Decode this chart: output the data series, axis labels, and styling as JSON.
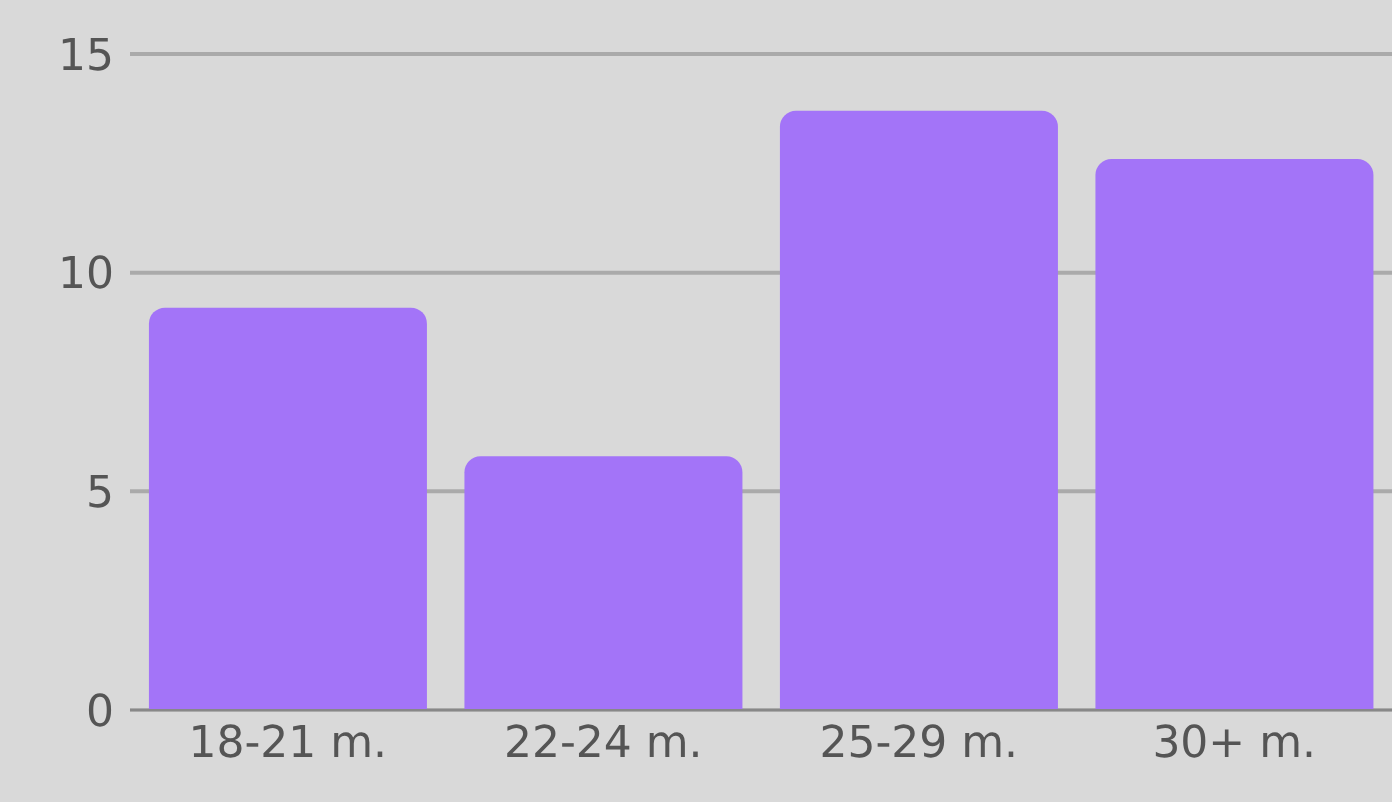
{
  "chart_data": {
    "type": "bar",
    "categories": [
      "18-21 m.",
      "22-24 m.",
      "25-29 m.",
      "30+ m."
    ],
    "values": [
      9.2,
      5.8,
      13.7,
      12.6
    ],
    "color": "#a374f8",
    "ylim": [
      0,
      15
    ],
    "yticks": [
      0,
      5,
      10,
      15
    ],
    "grid": "y"
  }
}
